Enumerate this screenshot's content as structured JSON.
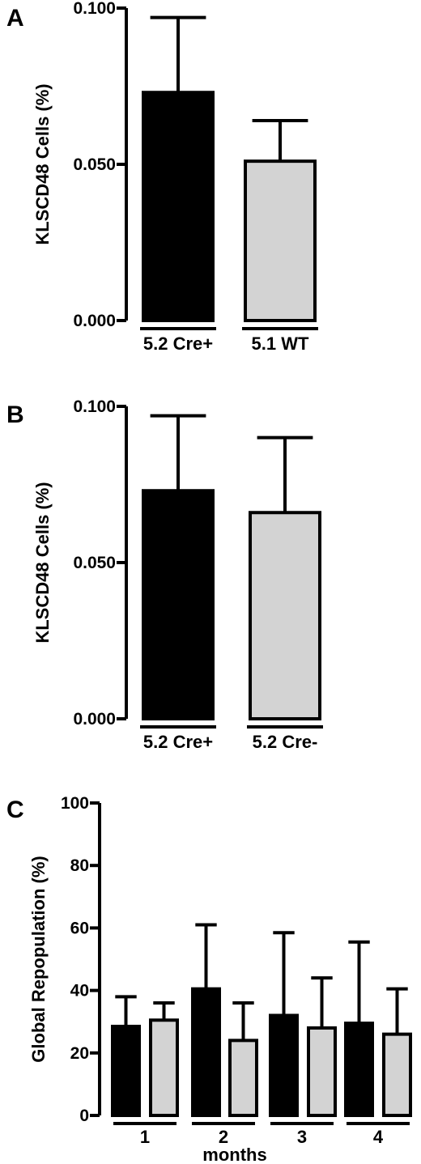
{
  "chart_data": [
    {
      "type": "bar",
      "panel": "A",
      "categories": [
        "5.2 Cre+",
        "5.1 WT"
      ],
      "values": [
        0.073,
        0.051
      ],
      "errors": [
        0.024,
        0.013
      ],
      "colors": [
        "#000000",
        "#d3d3d3"
      ],
      "ylabel": "KLSCD48  Cells (%)",
      "ylim": [
        0,
        0.1
      ],
      "yticks": [
        "0.000",
        "0.050",
        "0.100"
      ],
      "tick_values": [
        0,
        0.05,
        0.1
      ]
    },
    {
      "type": "bar",
      "panel": "B",
      "categories": [
        "5.2 Cre+",
        "5.2 Cre-"
      ],
      "values": [
        0.073,
        0.066
      ],
      "errors": [
        0.024,
        0.024
      ],
      "colors": [
        "#000000",
        "#d3d3d3"
      ],
      "ylabel": "KLSCD48  Cells (%)",
      "ylim": [
        0,
        0.1
      ],
      "yticks": [
        "0.000",
        "0.050",
        "0.100"
      ],
      "tick_values": [
        0,
        0.05,
        0.1
      ]
    },
    {
      "type": "bar",
      "panel": "C",
      "categories": [
        "1",
        "2",
        "3",
        "4"
      ],
      "series": [
        {
          "values": [
            28.5,
            40.5,
            32,
            29.5
          ],
          "errors": [
            9.5,
            20.5,
            26.5,
            26
          ],
          "color": "#000000"
        },
        {
          "values": [
            30.5,
            24,
            28,
            26
          ],
          "errors": [
            5.5,
            12,
            16,
            14.5
          ],
          "color": "#d3d3d3"
        }
      ],
      "xlabel": "months",
      "ylabel": "Global Repopulation (%)",
      "ylim": [
        0,
        100
      ],
      "yticks": [
        "0",
        "20",
        "40",
        "60",
        "80",
        "100"
      ],
      "tick_values": [
        0,
        20,
        40,
        60,
        80,
        100
      ]
    }
  ]
}
